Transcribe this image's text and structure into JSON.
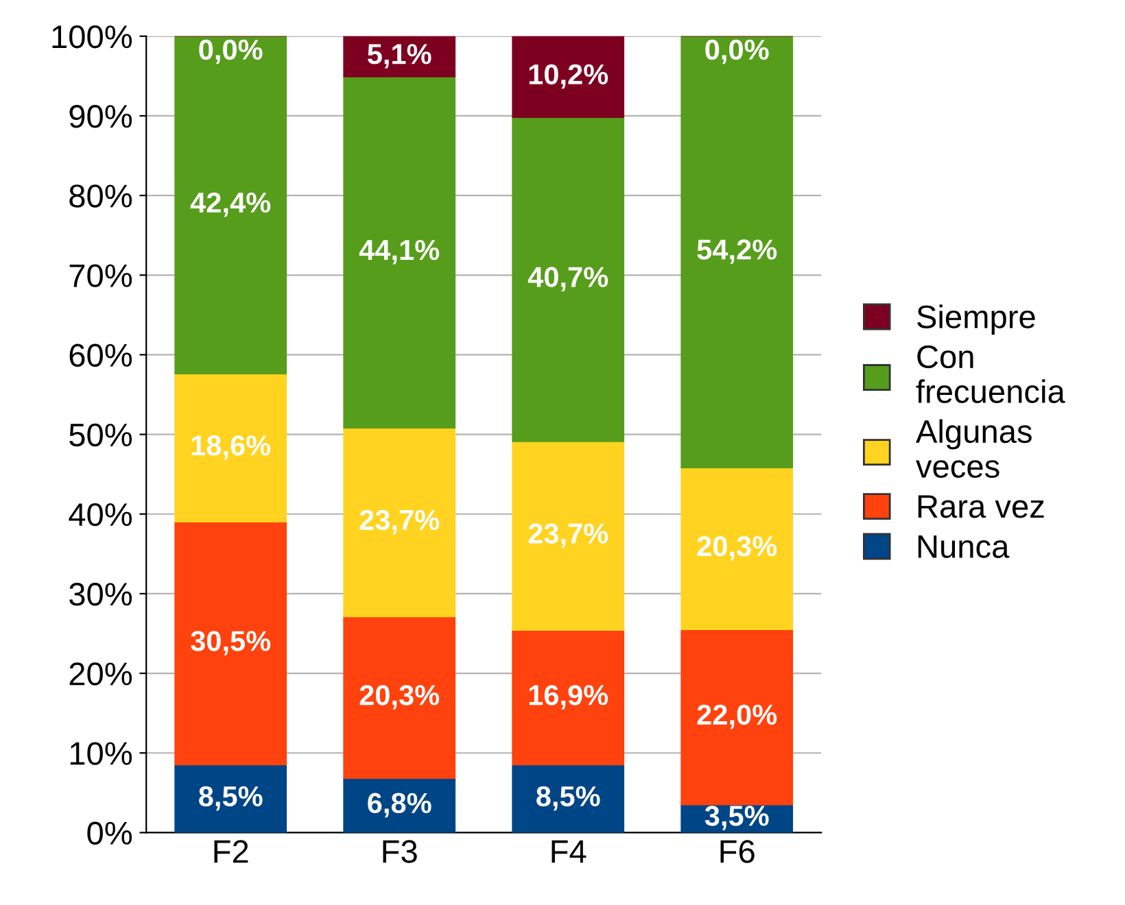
{
  "chart_data": {
    "type": "bar",
    "stacked": true,
    "categories": [
      "F2",
      "F3",
      "F4",
      "F6"
    ],
    "series": [
      {
        "name": "Nunca",
        "color": "#004586",
        "values": [
          8.5,
          6.8,
          8.5,
          3.5
        ],
        "value_labels": [
          "8,5%",
          "6,8%",
          "8,5%",
          "3,5%"
        ]
      },
      {
        "name": "Rara vez",
        "color": "#ff420e",
        "values": [
          30.5,
          20.3,
          16.9,
          22.0
        ],
        "value_labels": [
          "30,5%",
          "20,3%",
          "16,9%",
          "22,0%"
        ]
      },
      {
        "name": "Algunas\nveces",
        "color": "#ffd320",
        "values": [
          18.6,
          23.7,
          23.7,
          20.3
        ],
        "value_labels": [
          "18,6%",
          "23,7%",
          "23,7%",
          "20,3%"
        ]
      },
      {
        "name": "Con\nfrecuencia",
        "color": "#579d1c",
        "values": [
          42.4,
          44.1,
          40.7,
          54.2
        ],
        "value_labels": [
          "42,4%",
          "44,1%",
          "40,7%",
          "54,2%"
        ]
      },
      {
        "name": "Siempre",
        "color": "#7e0021",
        "values": [
          0.0,
          5.1,
          10.2,
          0.0
        ],
        "value_labels": [
          "0,0%",
          "5,1%",
          "10,2%",
          "0,0%"
        ]
      }
    ],
    "ylim": [
      0,
      100
    ],
    "yticks": [
      {
        "value": 0,
        "label": "0%"
      },
      {
        "value": 10,
        "label": "10%"
      },
      {
        "value": 20,
        "label": "20%"
      },
      {
        "value": 30,
        "label": "30%"
      },
      {
        "value": 40,
        "label": "40%"
      },
      {
        "value": 50,
        "label": "50%"
      },
      {
        "value": 60,
        "label": "60%"
      },
      {
        "value": 70,
        "label": "70%"
      },
      {
        "value": 80,
        "label": "80%"
      },
      {
        "value": 90,
        "label": "90%"
      },
      {
        "value": 100,
        "label": "100%"
      }
    ],
    "grid": "y",
    "legend": "right"
  }
}
